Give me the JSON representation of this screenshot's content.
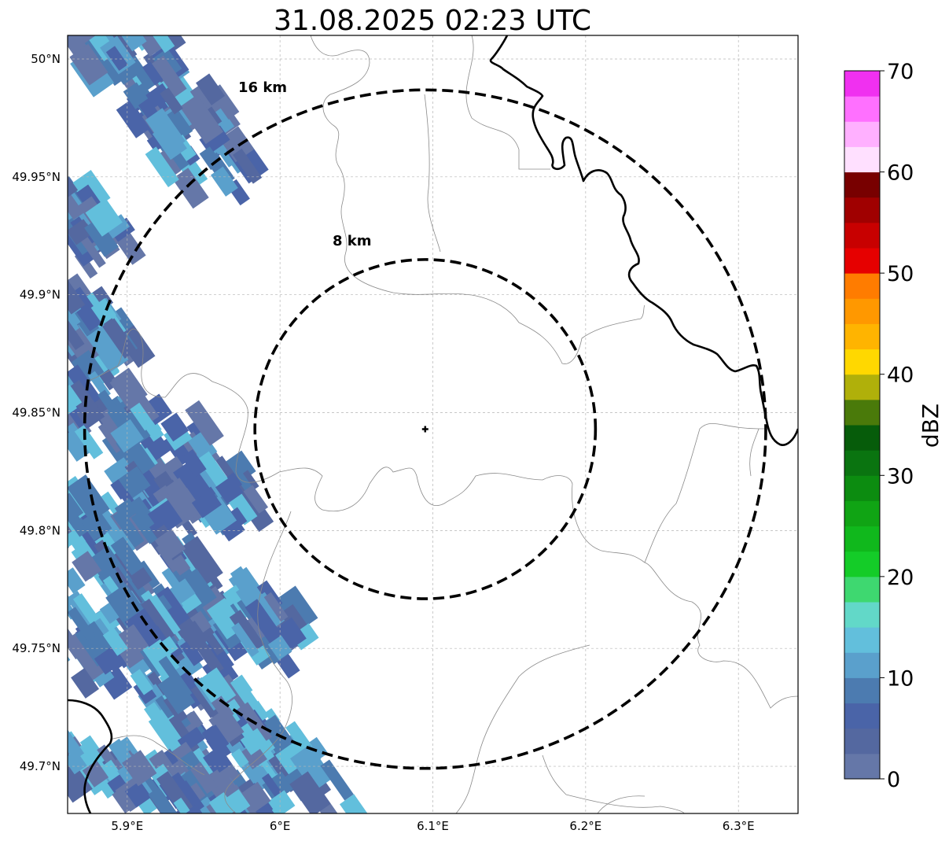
{
  "title": "31.08.2025 02:23 UTC",
  "map": {
    "lon_ticks": [
      {
        "value": 5.9,
        "label": "5.9°E"
      },
      {
        "value": 6.0,
        "label": "6°E"
      },
      {
        "value": 6.1,
        "label": "6.1°E"
      },
      {
        "value": 6.2,
        "label": "6.2°E"
      },
      {
        "value": 6.3,
        "label": "6.3°E"
      }
    ],
    "lat_ticks": [
      {
        "value": 50.0,
        "label": "50°N"
      },
      {
        "value": 49.95,
        "label": "49.95°N"
      },
      {
        "value": 49.9,
        "label": "49.9°N"
      },
      {
        "value": 49.85,
        "label": "49.85°N"
      },
      {
        "value": 49.8,
        "label": "49.8°N"
      },
      {
        "value": 49.75,
        "label": "49.75°N"
      },
      {
        "value": 49.7,
        "label": "49.7°N"
      }
    ],
    "lon_range": [
      5.861,
      6.339
    ],
    "lat_range": [
      49.68,
      50.01
    ],
    "center": {
      "lon": 6.095,
      "lat": 49.843
    },
    "rings": [
      {
        "label": "8 km",
        "radius_km": 8
      },
      {
        "label": "16 km",
        "radius_km": 16
      }
    ],
    "gridlines": true
  },
  "colorbar": {
    "label": "dBZ",
    "ticks": [
      "0",
      "10",
      "20",
      "30",
      "40",
      "50",
      "60",
      "70"
    ],
    "range": [
      0,
      70
    ],
    "step": 2.5,
    "colors": [
      "#6577a8",
      "#5468a0",
      "#4a64a8",
      "#4c7bb0",
      "#5aa0cc",
      "#62bfdc",
      "#62d8c8",
      "#3ed870",
      "#14cc28",
      "#10b81c",
      "#10a414",
      "#0c8c10",
      "#0a7410",
      "#065c0a",
      "#4a7a0a",
      "#b0b00a",
      "#ffd800",
      "#ffb400",
      "#ff9800",
      "#ff7c00",
      "#e60000",
      "#c80000",
      "#a00000",
      "#780000",
      "#ffe0ff",
      "#ffb0ff",
      "#ff70ff",
      "#f030f0"
    ]
  }
}
